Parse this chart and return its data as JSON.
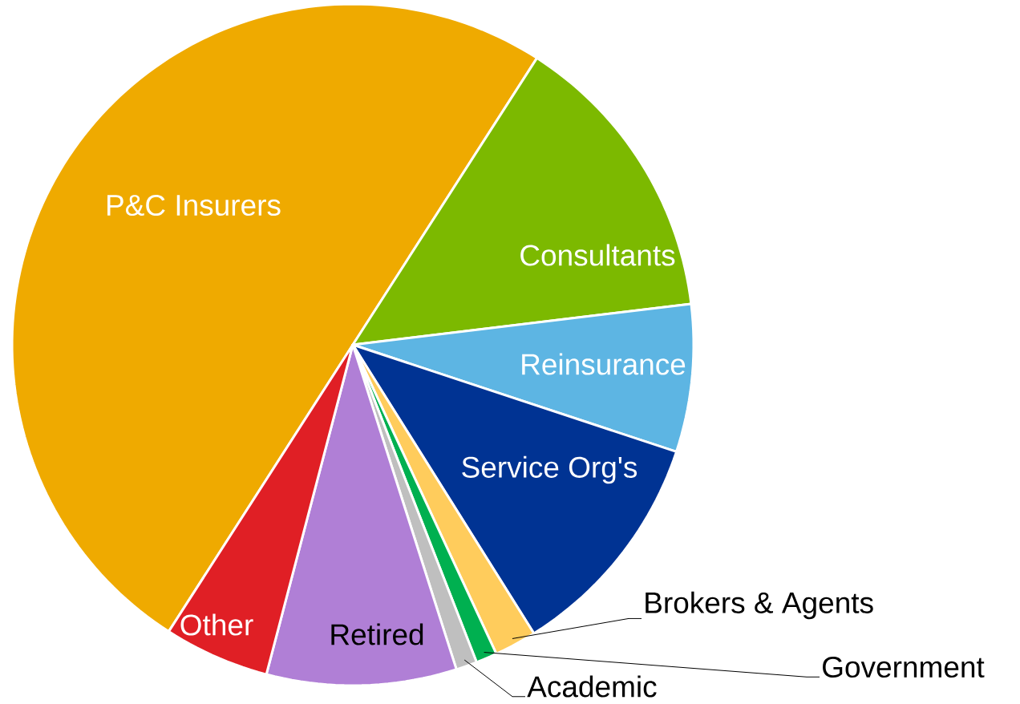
{
  "chart_data": {
    "type": "pie",
    "categories": [
      "P&C Insurers",
      "Consultants",
      "Reinsurance",
      "Service Org's",
      "Brokers & Agents",
      "Government",
      "Academic",
      "Retired",
      "Other"
    ],
    "values": [
      50,
      14,
      7,
      11,
      2,
      1,
      1,
      9,
      5
    ],
    "colors": [
      "#efaa00",
      "#7cb900",
      "#5db5e3",
      "#003393",
      "#ffcc5c",
      "#00b050",
      "#bfbfbf",
      "#b07fd6",
      "#e01f25"
    ]
  }
}
